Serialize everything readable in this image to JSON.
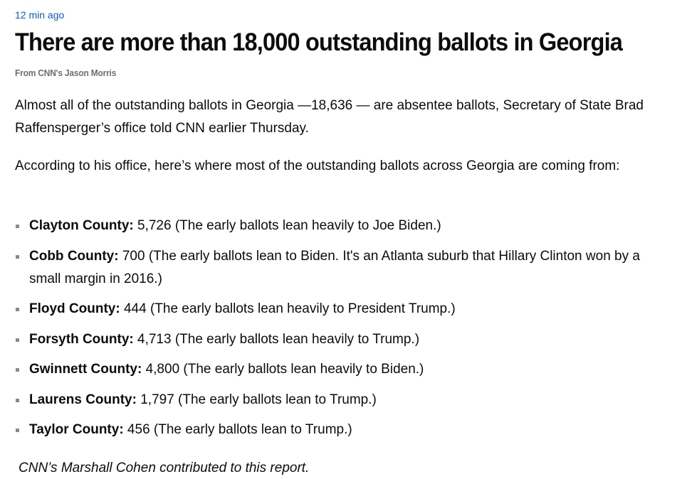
{
  "post": {
    "timestamp": "12 min ago",
    "headline": "There are more than 18,000 outstanding ballots in Georgia",
    "byline": "From CNN's Jason Morris",
    "paragraphs": [
      "Almost all of the outstanding ballots in Georgia —18,636 — are absentee ballots, Secretary of State Brad Raffensperger’s office told CNN earlier Thursday.",
      "According to his office, here’s where most of the outstanding ballots across Georgia are coming from:"
    ],
    "counties": [
      {
        "name": "Clayton County:",
        "detail": " 5,726 (The early ballots lean heavily to Joe Biden.)"
      },
      {
        "name": "Cobb County:",
        "detail": " 700 (The early ballots lean to Biden. It's an Atlanta suburb that Hillary Clinton won by a small margin in 2016.)"
      },
      {
        "name": "Floyd County:",
        "detail": " 444 (The early ballots lean heavily to President Trump.)"
      },
      {
        "name": "Forsyth County:",
        "detail": " 4,713 (The early ballots lean heavily to Trump.)"
      },
      {
        "name": "Gwinnett County:",
        "detail": " 4,800 (The early ballots lean heavily to Biden.)"
      },
      {
        "name": "Laurens County:",
        "detail": " 1,797 (The early ballots lean to Trump.)"
      },
      {
        "name": "Taylor County:",
        "detail": " 456 (The early ballots lean to Trump.)"
      }
    ],
    "credit": "CNN’s Marshall Cohen contributed to this report."
  },
  "colors": {
    "timestamp": "#0c5cbb",
    "text": "#0c0c0c",
    "byline": "#6e6e6e",
    "bullet": "#8a8a8a"
  }
}
